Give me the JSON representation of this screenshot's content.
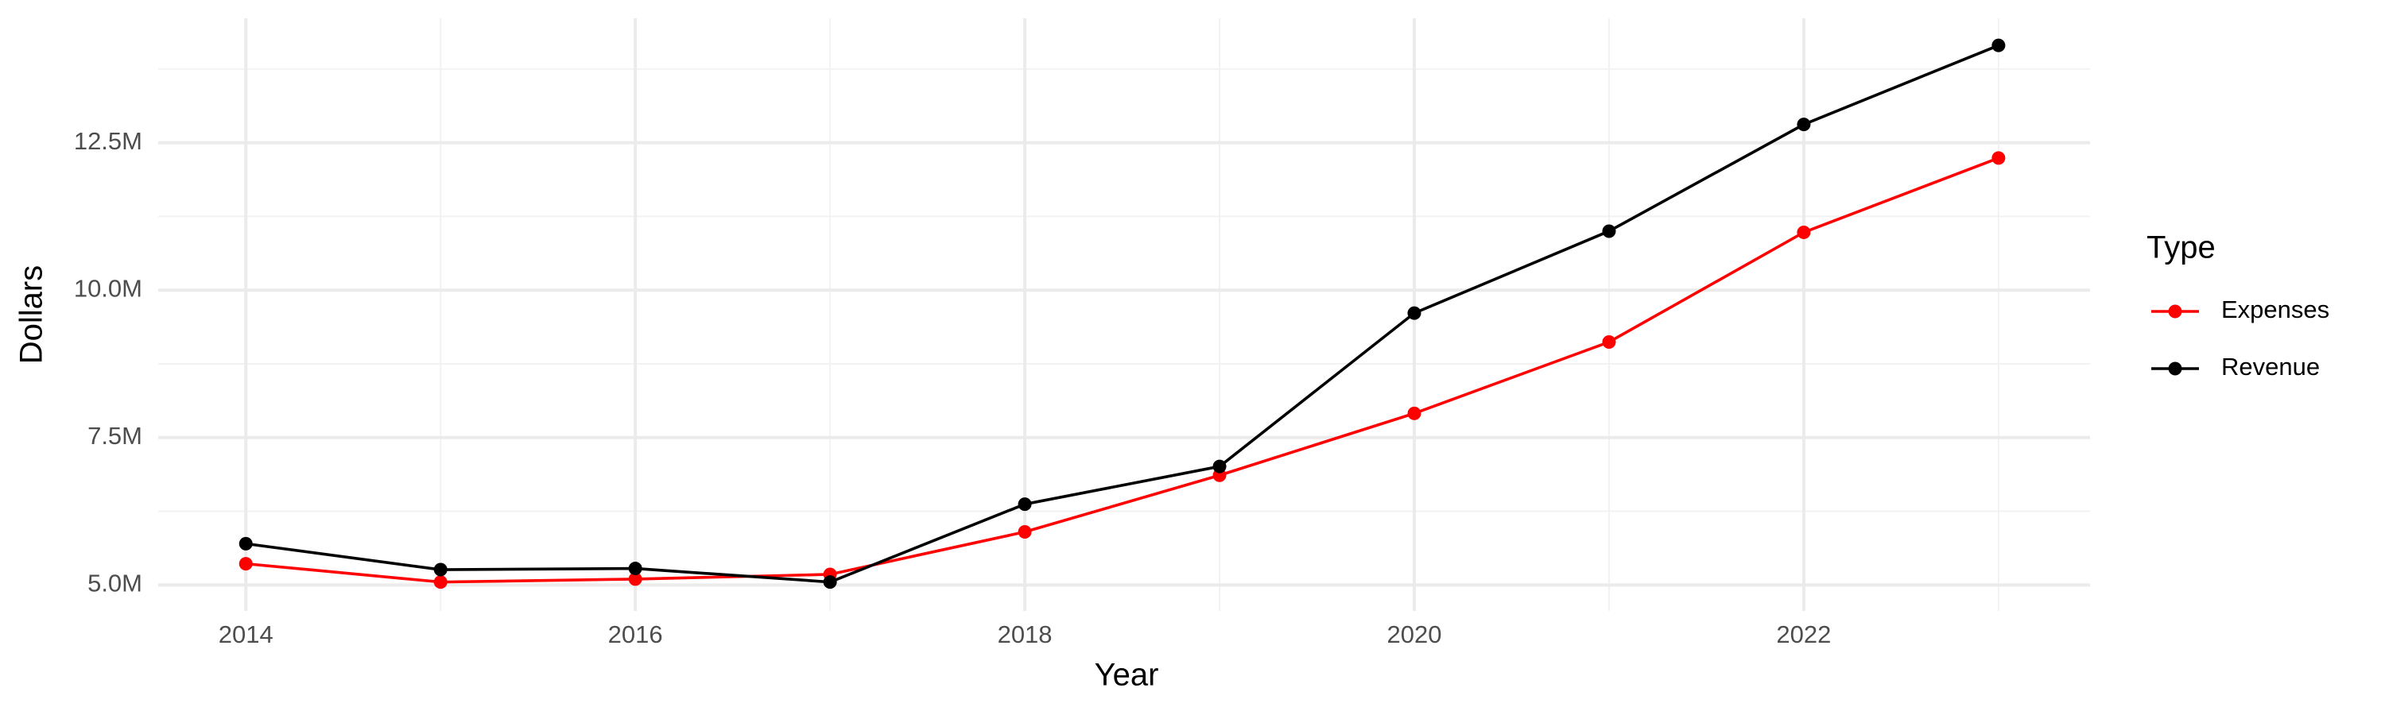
{
  "chart_data": {
    "type": "line",
    "x_label": "Year",
    "y_label": "Dollars",
    "legend_title": "Type",
    "x": [
      2014,
      2015,
      2016,
      2017,
      2018,
      2019,
      2020,
      2021,
      2022,
      2023
    ],
    "series": [
      {
        "name": "Expenses",
        "color": "#ff0000",
        "values": [
          5360000,
          5050000,
          5100000,
          5180000,
          5900000,
          6860000,
          7910000,
          9120000,
          10980000,
          12240000
        ]
      },
      {
        "name": "Revenue",
        "color": "#000000",
        "values": [
          5700000,
          5260000,
          5280000,
          5050000,
          6370000,
          7010000,
          9610000,
          11000000,
          12810000,
          14150000
        ]
      }
    ],
    "xlim": [
      2013.55,
      2023.47
    ],
    "xticks": [
      2014,
      2016,
      2018,
      2020,
      2022
    ],
    "minor_xticks": [
      2015,
      2017,
      2019,
      2021,
      2023
    ],
    "ylim": [
      4560000,
      14610000
    ],
    "yticks": [
      {
        "value": 5000000,
        "label": "5.0M"
      },
      {
        "value": 7500000,
        "label": "7.5M"
      },
      {
        "value": 10000000,
        "label": "10.0M"
      },
      {
        "value": 12500000,
        "label": "12.5M"
      }
    ],
    "minor_yticks": [
      6250000,
      8750000,
      11250000,
      13750000
    ],
    "grid": true,
    "legend_position": "right"
  }
}
